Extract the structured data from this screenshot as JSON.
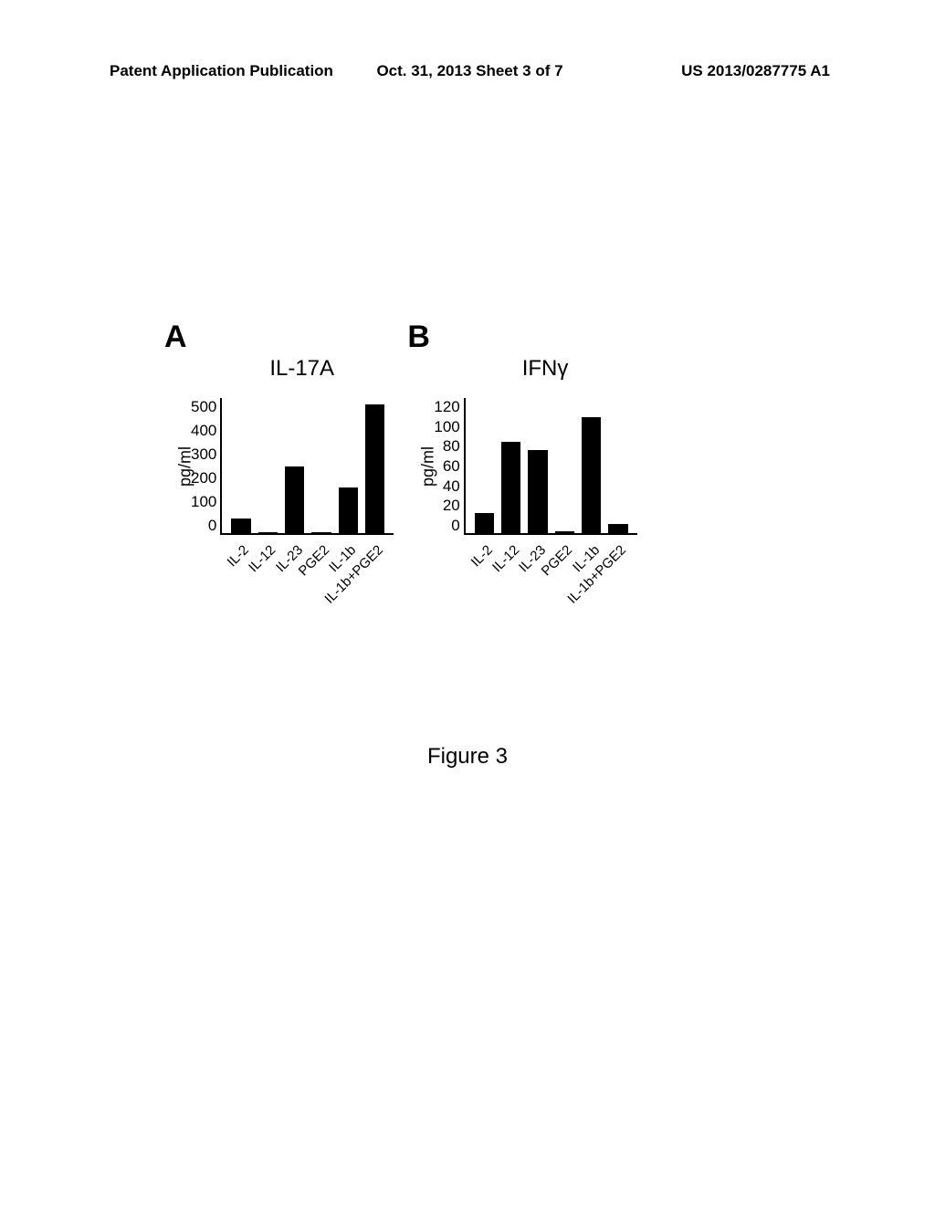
{
  "header": {
    "left": "Patent Application Publication",
    "center": "Oct. 31, 2013  Sheet 3 of 7",
    "right": "US 2013/0287775 A1"
  },
  "figure_caption": "Figure 3",
  "chartA": {
    "panel_label": "A",
    "title": "IL-17A",
    "type": "bar",
    "y_label": "pg/ml",
    "ylim": [
      0,
      500
    ],
    "ytick_step": 100,
    "categories": [
      "IL-2",
      "IL-12",
      "IL-23",
      "PGE2",
      "IL-1b",
      "IL-1b+PGE2"
    ],
    "values": [
      55,
      5,
      245,
      5,
      170,
      475
    ],
    "bar_color": "#000000",
    "background_color": "#ffffff",
    "axis_color": "#000000",
    "label_fontsize": 15,
    "title_fontsize": 24
  },
  "chartB": {
    "panel_label": "B",
    "title": "IFNγ",
    "type": "bar",
    "y_label": "pg/ml",
    "ylim": [
      0,
      120
    ],
    "ytick_step": 20,
    "categories": [
      "IL-2",
      "IL-12",
      "IL-23",
      "PGE2",
      "IL-1b",
      "IL-1b+PGE2"
    ],
    "values": [
      18,
      81,
      74,
      2,
      103,
      8
    ],
    "bar_color": "#000000",
    "background_color": "#ffffff",
    "axis_color": "#000000",
    "label_fontsize": 15,
    "title_fontsize": 24
  }
}
